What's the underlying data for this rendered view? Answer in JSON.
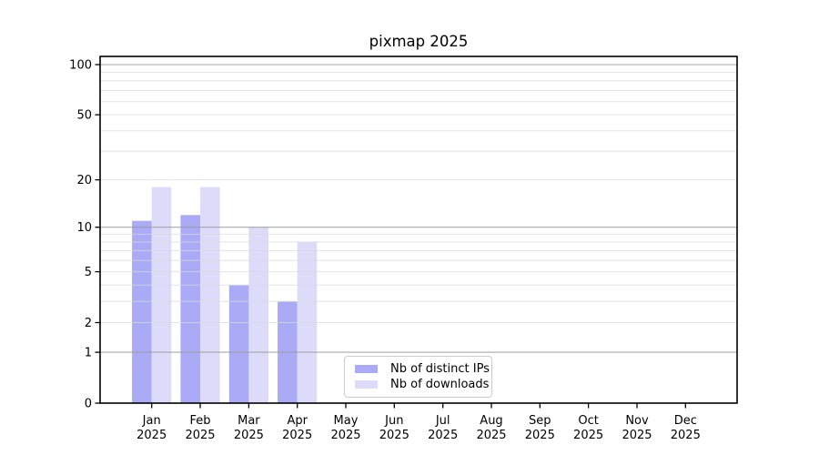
{
  "figure": {
    "background": "#ffffff"
  },
  "chart_data": {
    "type": "bar",
    "title": "pixmap 2025",
    "categories": [
      "Jan",
      "Feb",
      "Mar",
      "Apr",
      "May",
      "Jun",
      "Jul",
      "Aug",
      "Sep",
      "Oct",
      "Nov",
      "Dec"
    ],
    "year_label": "2025",
    "series": [
      {
        "name": "Nb of distinct IPs",
        "color": "#aaaaf6",
        "values": [
          11,
          12,
          4,
          3,
          0,
          0,
          0,
          0,
          0,
          0,
          0,
          0
        ]
      },
      {
        "name": "Nb of downloads",
        "color": "#dcdcfa",
        "values": [
          18,
          18,
          10,
          8,
          0,
          0,
          0,
          0,
          0,
          0,
          0,
          0
        ]
      }
    ],
    "xlabel": "",
    "ylabel": "",
    "yscale": "log1p",
    "ylim": [
      0,
      112
    ],
    "yticks": [
      0,
      1,
      2,
      5,
      10,
      20,
      50,
      100
    ],
    "grid": true,
    "grid_major_values": [
      1,
      10,
      100
    ],
    "grid_minor_values": [
      2,
      3,
      4,
      5,
      6,
      7,
      8,
      9,
      20,
      30,
      40,
      50,
      60,
      70,
      80,
      90
    ],
    "legend_position": "lower center-left inside plot"
  },
  "style_colors": {
    "spine": "#000000",
    "tick_label": "#000000",
    "grid_major": "#9a9a9a",
    "grid_minor": "#dadada",
    "legend_border": "#cccccc"
  }
}
